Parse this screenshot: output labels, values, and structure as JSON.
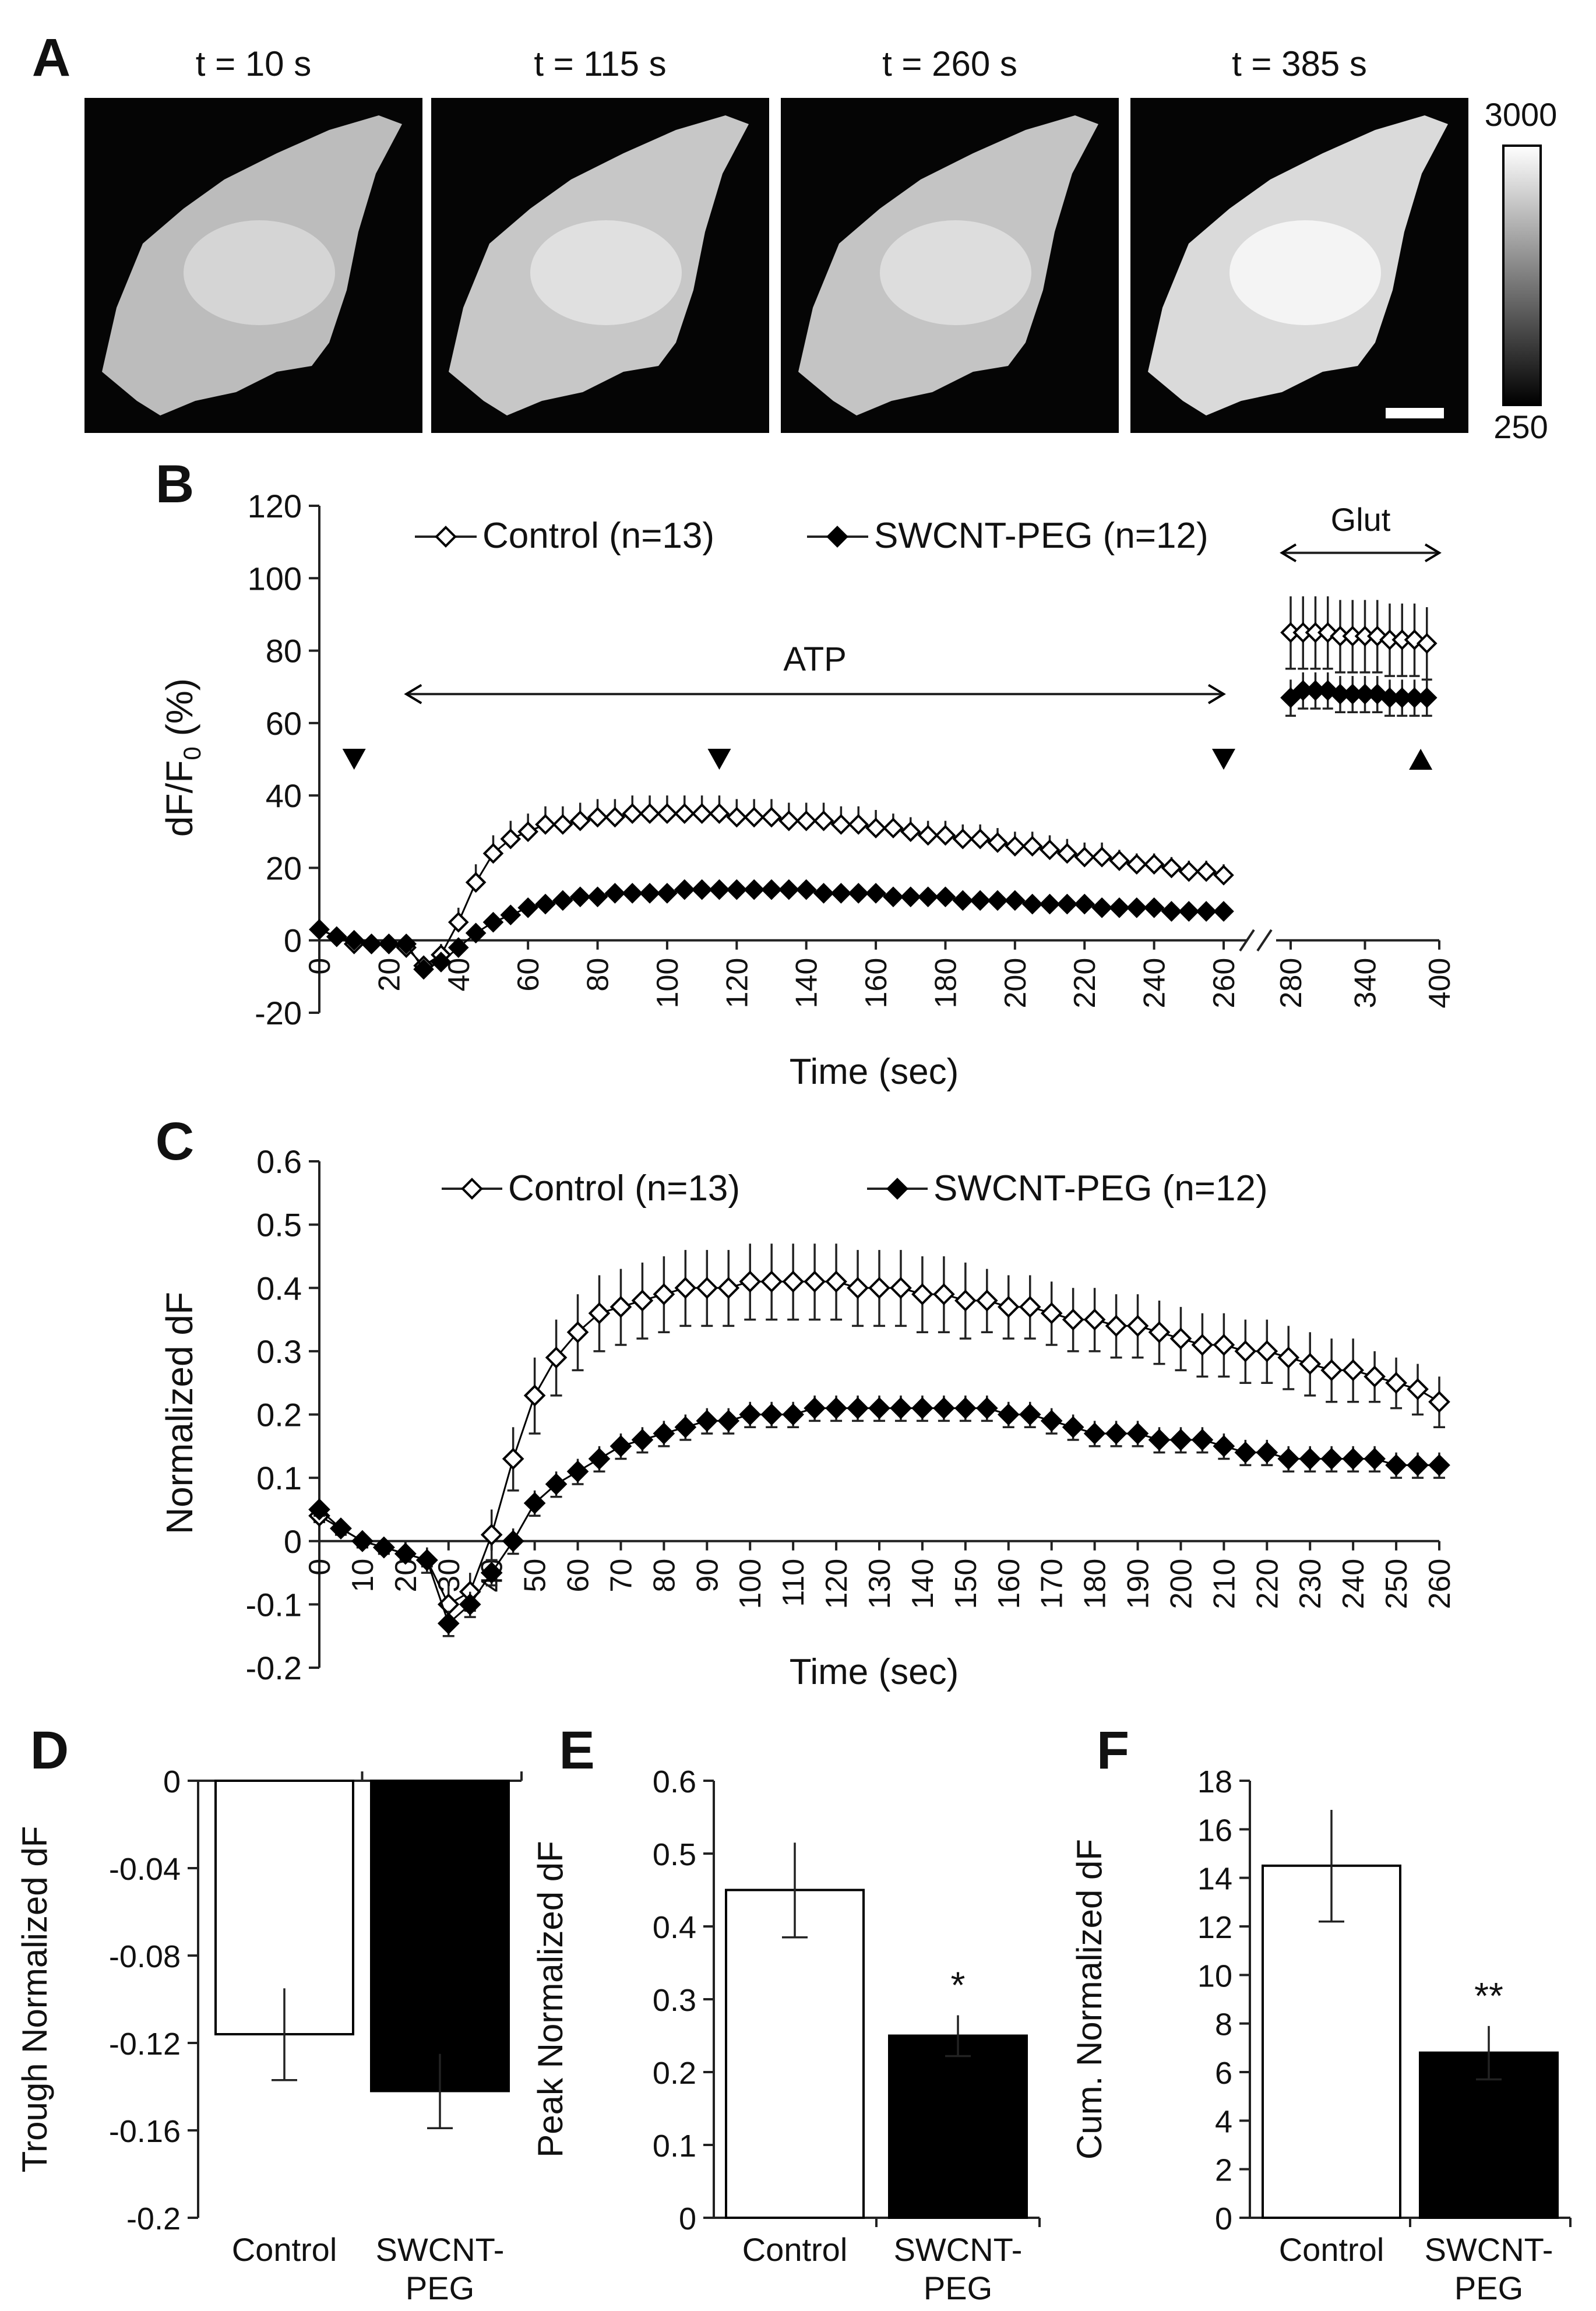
{
  "colors": {
    "axis": "#222222",
    "control_fill": "#ffffff",
    "swcnt_fill": "#000000",
    "image_bg": "#050505",
    "image_cell": "#c4c4c4"
  },
  "panel_a": {
    "letter": "A",
    "frames": [
      {
        "label": "t = 10 s",
        "brightness": 0.72
      },
      {
        "label": "t = 115 s",
        "brightness": 0.8
      },
      {
        "label": "t = 260 s",
        "brightness": 0.78
      },
      {
        "label": "t = 385 s",
        "brightness": 0.93
      }
    ],
    "colorbar": {
      "max_label": "3000",
      "min_label": "250"
    }
  },
  "chart_data": [
    {
      "id": "B",
      "letter": "B",
      "type": "line",
      "xlabel": "Time (sec)",
      "ylabel_main": "dF/F",
      "ylabel_sub": "0",
      "ylabel_tail": " (%)",
      "ylim": [
        -20,
        120
      ],
      "yticks": [
        "-20",
        "0",
        "20",
        "40",
        "60",
        "80",
        "100",
        "120"
      ],
      "xticks_left": [
        "0",
        "20",
        "40",
        "60",
        "80",
        "100",
        "120",
        "140",
        "160",
        "180",
        "200",
        "220",
        "240",
        "260"
      ],
      "xticks_right": [
        "280",
        "340",
        "400"
      ],
      "xlim_left": [
        0,
        260
      ],
      "xlim_right": [
        270,
        400
      ],
      "annotations": {
        "atp": "ATP",
        "glut": "Glut"
      },
      "arrowhead_times": [
        10,
        115,
        260
      ],
      "uparrow_time": 385,
      "legend": [
        "Control (n=13)",
        "SWCNT-PEG (n=12)"
      ],
      "series": [
        {
          "name": "Control (n=13)",
          "x": [
            0,
            5,
            10,
            15,
            20,
            25,
            30,
            35,
            40,
            45,
            50,
            55,
            60,
            65,
            70,
            75,
            80,
            85,
            90,
            95,
            100,
            105,
            110,
            115,
            120,
            125,
            130,
            135,
            140,
            145,
            150,
            155,
            160,
            165,
            170,
            175,
            180,
            185,
            190,
            195,
            200,
            205,
            210,
            215,
            220,
            225,
            230,
            235,
            240,
            245,
            250,
            255,
            260
          ],
          "y": [
            3,
            1,
            -1,
            -1,
            -1,
            -2,
            -7,
            -4,
            5,
            16,
            24,
            28,
            30,
            32,
            32,
            33,
            34,
            34,
            35,
            35,
            35,
            35,
            35,
            35,
            34,
            34,
            34,
            33,
            33,
            33,
            32,
            32,
            31,
            31,
            30,
            29,
            29,
            28,
            28,
            27,
            26,
            26,
            25,
            24,
            23,
            23,
            22,
            21,
            21,
            20,
            19,
            19,
            18
          ],
          "err": [
            1,
            1,
            1,
            1,
            1,
            1,
            2,
            3,
            4,
            5,
            5,
            5,
            5,
            5,
            5,
            5,
            5,
            5,
            5,
            5,
            5,
            5,
            5,
            5,
            5,
            5,
            5,
            5,
            5,
            5,
            5,
            5,
            5,
            4,
            4,
            4,
            4,
            4,
            4,
            4,
            4,
            4,
            4,
            4,
            4,
            4,
            3,
            3,
            3,
            3,
            3,
            3,
            3
          ]
        },
        {
          "name": "SWCNT-PEG (n=12)",
          "x": [
            0,
            5,
            10,
            15,
            20,
            25,
            30,
            35,
            40,
            45,
            50,
            55,
            60,
            65,
            70,
            75,
            80,
            85,
            90,
            95,
            100,
            105,
            110,
            115,
            120,
            125,
            130,
            135,
            140,
            145,
            150,
            155,
            160,
            165,
            170,
            175,
            180,
            185,
            190,
            195,
            200,
            205,
            210,
            215,
            220,
            225,
            230,
            235,
            240,
            245,
            250,
            255,
            260
          ],
          "y": [
            3,
            1,
            0,
            -1,
            -1,
            -1,
            -8,
            -6,
            -2,
            2,
            5,
            7,
            9,
            10,
            11,
            12,
            12,
            13,
            13,
            13,
            13,
            14,
            14,
            14,
            14,
            14,
            14,
            14,
            14,
            13,
            13,
            13,
            13,
            12,
            12,
            12,
            12,
            11,
            11,
            11,
            11,
            10,
            10,
            10,
            10,
            9,
            9,
            9,
            9,
            8,
            8,
            8,
            8
          ],
          "err": [
            1,
            1,
            1,
            1,
            1,
            1,
            2,
            2,
            2,
            2,
            2,
            2,
            2,
            2,
            2,
            2,
            2,
            2,
            2,
            2,
            2,
            2,
            2,
            2,
            2,
            2,
            2,
            2,
            2,
            2,
            2,
            2,
            2,
            2,
            2,
            2,
            2,
            2,
            2,
            2,
            2,
            2,
            2,
            2,
            2,
            2,
            2,
            2,
            2,
            2,
            2,
            2,
            2
          ]
        }
      ],
      "glut_series": [
        {
          "name": "Control (n=13)",
          "x": [
            280,
            290,
            300,
            310,
            320,
            330,
            340,
            350,
            360,
            370,
            380,
            390
          ],
          "y": [
            85,
            85,
            85,
            85,
            84,
            84,
            84,
            84,
            83,
            83,
            83,
            82
          ],
          "err": [
            10,
            10,
            10,
            10,
            10,
            10,
            10,
            10,
            10,
            10,
            10,
            10
          ]
        },
        {
          "name": "SWCNT-PEG (n=12)",
          "x": [
            280,
            290,
            300,
            310,
            320,
            330,
            340,
            350,
            360,
            370,
            380,
            390
          ],
          "y": [
            67,
            69,
            69,
            69,
            68,
            68,
            68,
            68,
            67,
            67,
            67,
            67
          ],
          "err": [
            5,
            5,
            5,
            5,
            5,
            5,
            5,
            5,
            5,
            5,
            5,
            5
          ]
        }
      ]
    },
    {
      "id": "C",
      "letter": "C",
      "type": "line",
      "xlabel": "Time (sec)",
      "ylabel": "Normalized dF",
      "ylim": [
        -0.2,
        0.6
      ],
      "yticks": [
        "-0.2",
        "-0.1",
        "0",
        "0.1",
        "0.2",
        "0.3",
        "0.4",
        "0.5",
        "0.6"
      ],
      "xticks": [
        "0",
        "10",
        "20",
        "30",
        "40",
        "50",
        "60",
        "70",
        "80",
        "90",
        "100",
        "110",
        "120",
        "130",
        "140",
        "150",
        "160",
        "170",
        "180",
        "190",
        "200",
        "210",
        "220",
        "230",
        "240",
        "250",
        "260"
      ],
      "xlim": [
        0,
        260
      ],
      "legend": [
        "Control (n=13)",
        "SWCNT-PEG (n=12)"
      ],
      "series": [
        {
          "name": "Control (n=13)",
          "x": [
            0,
            5,
            10,
            15,
            20,
            25,
            30,
            35,
            40,
            45,
            50,
            55,
            60,
            65,
            70,
            75,
            80,
            85,
            90,
            95,
            100,
            105,
            110,
            115,
            120,
            125,
            130,
            135,
            140,
            145,
            150,
            155,
            160,
            165,
            170,
            175,
            180,
            185,
            190,
            195,
            200,
            205,
            210,
            215,
            220,
            225,
            230,
            235,
            240,
            245,
            250,
            255,
            260
          ],
          "y": [
            0.04,
            0.02,
            0.0,
            -0.01,
            -0.02,
            -0.03,
            -0.1,
            -0.08,
            0.01,
            0.13,
            0.23,
            0.29,
            0.33,
            0.36,
            0.37,
            0.38,
            0.39,
            0.4,
            0.4,
            0.4,
            0.41,
            0.41,
            0.41,
            0.41,
            0.41,
            0.4,
            0.4,
            0.4,
            0.39,
            0.39,
            0.38,
            0.38,
            0.37,
            0.37,
            0.36,
            0.35,
            0.35,
            0.34,
            0.34,
            0.33,
            0.32,
            0.31,
            0.31,
            0.3,
            0.3,
            0.29,
            0.28,
            0.27,
            0.27,
            0.26,
            0.25,
            0.24,
            0.22
          ],
          "err": [
            0.01,
            0.01,
            0.01,
            0.01,
            0.01,
            0.02,
            0.03,
            0.03,
            0.04,
            0.05,
            0.06,
            0.06,
            0.06,
            0.06,
            0.06,
            0.06,
            0.06,
            0.06,
            0.06,
            0.06,
            0.06,
            0.06,
            0.06,
            0.06,
            0.06,
            0.06,
            0.06,
            0.06,
            0.06,
            0.06,
            0.06,
            0.05,
            0.05,
            0.05,
            0.05,
            0.05,
            0.05,
            0.05,
            0.05,
            0.05,
            0.05,
            0.05,
            0.05,
            0.05,
            0.05,
            0.05,
            0.05,
            0.05,
            0.05,
            0.04,
            0.04,
            0.04,
            0.04
          ]
        },
        {
          "name": "SWCNT-PEG (n=12)",
          "x": [
            0,
            5,
            10,
            15,
            20,
            25,
            30,
            35,
            40,
            45,
            50,
            55,
            60,
            65,
            70,
            75,
            80,
            85,
            90,
            95,
            100,
            105,
            110,
            115,
            120,
            125,
            130,
            135,
            140,
            145,
            150,
            155,
            160,
            165,
            170,
            175,
            180,
            185,
            190,
            195,
            200,
            205,
            210,
            215,
            220,
            225,
            230,
            235,
            240,
            245,
            250,
            255,
            260
          ],
          "y": [
            0.05,
            0.02,
            0.0,
            -0.01,
            -0.02,
            -0.03,
            -0.13,
            -0.1,
            -0.05,
            0.0,
            0.06,
            0.09,
            0.11,
            0.13,
            0.15,
            0.16,
            0.17,
            0.18,
            0.19,
            0.19,
            0.2,
            0.2,
            0.2,
            0.21,
            0.21,
            0.21,
            0.21,
            0.21,
            0.21,
            0.21,
            0.21,
            0.21,
            0.2,
            0.2,
            0.19,
            0.18,
            0.17,
            0.17,
            0.17,
            0.16,
            0.16,
            0.16,
            0.15,
            0.14,
            0.14,
            0.13,
            0.13,
            0.13,
            0.13,
            0.13,
            0.12,
            0.12,
            0.12
          ],
          "err": [
            0.01,
            0.01,
            0.01,
            0.01,
            0.01,
            0.01,
            0.02,
            0.02,
            0.02,
            0.02,
            0.02,
            0.02,
            0.02,
            0.02,
            0.02,
            0.02,
            0.02,
            0.02,
            0.02,
            0.02,
            0.02,
            0.02,
            0.02,
            0.02,
            0.02,
            0.02,
            0.02,
            0.02,
            0.02,
            0.02,
            0.02,
            0.02,
            0.02,
            0.02,
            0.02,
            0.02,
            0.02,
            0.02,
            0.02,
            0.02,
            0.02,
            0.02,
            0.02,
            0.02,
            0.02,
            0.02,
            0.02,
            0.02,
            0.02,
            0.02,
            0.02,
            0.02,
            0.02
          ]
        }
      ]
    },
    {
      "id": "D",
      "letter": "D",
      "type": "bar",
      "ylabel": "Trough Normalized dF",
      "ylim": [
        -0.2,
        0
      ],
      "yticks": [
        "0",
        "-0.04",
        "-0.08",
        "-0.12",
        "-0.16",
        "-0.2"
      ],
      "categories": [
        [
          "Control"
        ],
        [
          "SWCNT-",
          "PEG"
        ]
      ],
      "values": [
        -0.116,
        -0.142
      ],
      "errors": [
        0.021,
        0.017
      ],
      "significance": [
        "",
        ""
      ]
    },
    {
      "id": "E",
      "letter": "E",
      "type": "bar",
      "ylabel": "Peak Normalized dF",
      "ylim": [
        0,
        0.6
      ],
      "yticks": [
        "0",
        "0.1",
        "0.2",
        "0.3",
        "0.4",
        "0.5",
        "0.6"
      ],
      "categories": [
        [
          "Control"
        ],
        [
          "SWCNT-",
          "PEG"
        ]
      ],
      "values": [
        0.45,
        0.25
      ],
      "errors": [
        0.065,
        0.028
      ],
      "significance": [
        "",
        "*"
      ]
    },
    {
      "id": "F",
      "letter": "F",
      "type": "bar",
      "ylabel": "Cum. Normalized dF",
      "ylim": [
        0,
        18
      ],
      "yticks": [
        "0",
        "2",
        "4",
        "6",
        "8",
        "10",
        "12",
        "14",
        "16",
        "18"
      ],
      "categories": [
        [
          "Control"
        ],
        [
          "SWCNT-",
          "PEG"
        ]
      ],
      "values": [
        14.5,
        6.8
      ],
      "errors": [
        2.3,
        1.1
      ],
      "significance": [
        "",
        "**"
      ]
    }
  ]
}
